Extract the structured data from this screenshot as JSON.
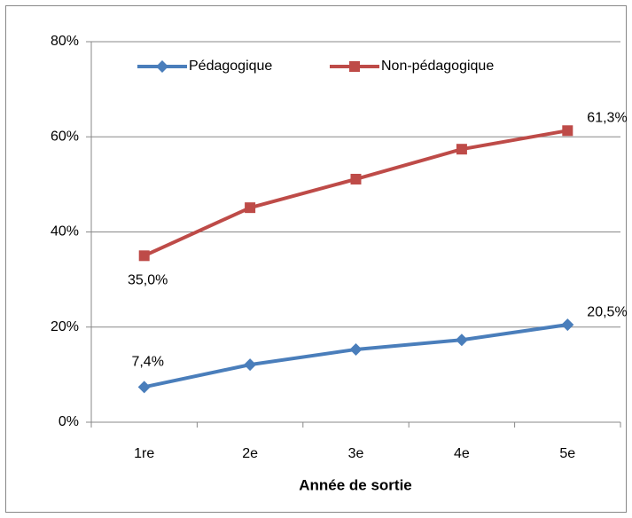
{
  "chart_data": {
    "type": "line",
    "xlabel": "Année de sortie",
    "categories": [
      "1re",
      "2e",
      "3e",
      "4e",
      "5e"
    ],
    "series": [
      {
        "name": "Pédagogique",
        "color": "#4a7ebb",
        "marker": "diamond",
        "values": [
          7.4,
          12.1,
          15.3,
          17.3,
          20.5
        ],
        "value_labels": [
          "7,4%",
          null,
          null,
          null,
          "20,5%"
        ]
      },
      {
        "name": "Non-pédagogique",
        "color": "#be4b48",
        "marker": "square",
        "values": [
          35.0,
          45.1,
          51.1,
          57.4,
          61.3
        ],
        "value_labels": [
          "35,0%",
          null,
          null,
          null,
          "61,3%"
        ]
      }
    ],
    "ylim": [
      0,
      80
    ],
    "yticks": [
      {
        "value": 0,
        "label": "0%"
      },
      {
        "value": 20,
        "label": "20%"
      },
      {
        "value": 40,
        "label": "40%"
      },
      {
        "value": 60,
        "label": "60%"
      },
      {
        "value": 80,
        "label": "80%"
      }
    ],
    "grid": true,
    "legend": "top"
  }
}
